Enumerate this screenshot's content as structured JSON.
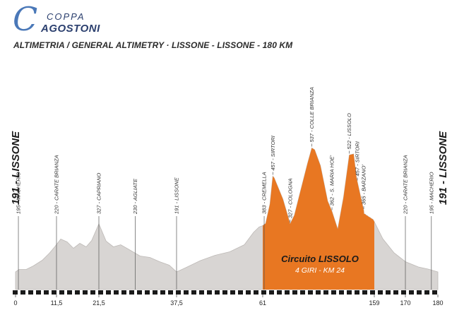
{
  "logo": {
    "coppa": "COPPA",
    "agostoni": "AGOSTONI"
  },
  "subtitle": "ALTIMETRIA / GENERAL ALTIMETRY · LISSONE - LISSONE - 180 KM",
  "colors": {
    "profile_gray": "#d8d5d3",
    "circuit_orange": "#e87722",
    "dash": "#1a1a1a",
    "logo_blue": "#4a78b8"
  },
  "chart_data": {
    "type": "area",
    "title": "ALTIMETRIA / GENERAL ALTIMETRY · LISSONE - LISSONE - 180 KM",
    "xlabel": "",
    "ylabel": "",
    "xlim": [
      0,
      180
    ],
    "ylim": [
      150,
      620
    ],
    "x_ticks": [
      {
        "km": 0,
        "label": "0"
      },
      {
        "km": 11.5,
        "label": "11,5"
      },
      {
        "km": 21.5,
        "label": "21,5"
      },
      {
        "km": 37.5,
        "label": "37,5"
      },
      {
        "km": 61,
        "label": "61"
      },
      {
        "km": 159,
        "label": "159"
      },
      {
        "km": 170,
        "label": "170"
      },
      {
        "km": 180,
        "label": "180"
      }
    ],
    "profile": [
      [
        0,
        191
      ],
      [
        1,
        198
      ],
      [
        3,
        198
      ],
      [
        5,
        208
      ],
      [
        7.5,
        224
      ],
      [
        9.5,
        244
      ],
      [
        11,
        262
      ],
      [
        12.5,
        284
      ],
      [
        14,
        276
      ],
      [
        15.5,
        258
      ],
      [
        17,
        272
      ],
      [
        18.5,
        262
      ],
      [
        19.8,
        280
      ],
      [
        21.5,
        327
      ],
      [
        23,
        278
      ],
      [
        24.5,
        262
      ],
      [
        26,
        268
      ],
      [
        27.5,
        256
      ],
      [
        28.5,
        248
      ],
      [
        30,
        236
      ],
      [
        32,
        232
      ],
      [
        34,
        220
      ],
      [
        36,
        210
      ],
      [
        37.5,
        191
      ],
      [
        40,
        203
      ],
      [
        44,
        223
      ],
      [
        48,
        238
      ],
      [
        52,
        248
      ],
      [
        56,
        268
      ],
      [
        58.5,
        303
      ],
      [
        60,
        318
      ],
      [
        61,
        322
      ],
      [
        62,
        328
      ],
      [
        63.5,
        383
      ],
      [
        64.5,
        462
      ],
      [
        65,
        457
      ],
      [
        68,
        397
      ],
      [
        70.5,
        327
      ],
      [
        72,
        352
      ],
      [
        74,
        417
      ],
      [
        76.5,
        497
      ],
      [
        78,
        542
      ],
      [
        79,
        537
      ],
      [
        81,
        492
      ],
      [
        83.5,
        392
      ],
      [
        85,
        362
      ],
      [
        87,
        312
      ],
      [
        89,
        402
      ],
      [
        91,
        522
      ],
      [
        92.5,
        525
      ],
      [
        93.5,
        457
      ],
      [
        96,
        365
      ],
      [
        98,
        355
      ],
      [
        104,
        355
      ],
      [
        110,
        352
      ],
      [
        118,
        350
      ],
      [
        126,
        347
      ],
      [
        134,
        345
      ],
      [
        142,
        342
      ],
      [
        150,
        340
      ],
      [
        155,
        337
      ],
      [
        159,
        333
      ],
      [
        162,
        285
      ],
      [
        166,
        245
      ],
      [
        170,
        220
      ],
      [
        174,
        205
      ],
      [
        177,
        199
      ],
      [
        180,
        191
      ]
    ],
    "circuit_range_km": [
      61,
      159
    ],
    "circuit_compression_km": [
      96,
      159
    ],
    "circuit_label": {
      "title": "Circuito LISSOLO",
      "subtitle": "4 GIRI - KM 24"
    },
    "start_label": "191 - LISSONE",
    "finish_label": "191 - LISSONE",
    "checkpoints": [
      {
        "km": 0.8,
        "text": "195 - MACHERIO",
        "kind": "full"
      },
      {
        "km": 11.5,
        "text": "220 - CARATE BRIANZA",
        "kind": "full"
      },
      {
        "km": 21.5,
        "text": "327 - CAPRIANO",
        "kind": "full"
      },
      {
        "km": 29,
        "text": "230 - AGLIATE",
        "kind": "full"
      },
      {
        "km": 37.5,
        "text": "191 - LISSONE",
        "kind": "full"
      },
      {
        "km": 61.5,
        "text": "383 - CREMELLA",
        "kind": "full"
      },
      {
        "km": 64.5,
        "text": "457 - SIRTORI",
        "kind": "top"
      },
      {
        "km": 70.5,
        "text": "327 - COLOGNA",
        "kind": "top"
      },
      {
        "km": 78,
        "text": "537 - COLLE BRIANZA",
        "kind": "top"
      },
      {
        "km": 85,
        "text": "362 - S. MARIA HOE'",
        "kind": "top"
      },
      {
        "km": 91,
        "text": "522 - LISSOLO",
        "kind": "top"
      },
      {
        "km": 93.8,
        "text": "457 - SIRTORI",
        "kind": "top"
      },
      {
        "km": 96,
        "text": "365 - BARZANO'",
        "kind": "top"
      },
      {
        "km": 170,
        "text": "220 - CARATE BRIANZA",
        "kind": "full"
      },
      {
        "km": 178,
        "text": "195 - MACHERIO",
        "kind": "full"
      }
    ]
  }
}
